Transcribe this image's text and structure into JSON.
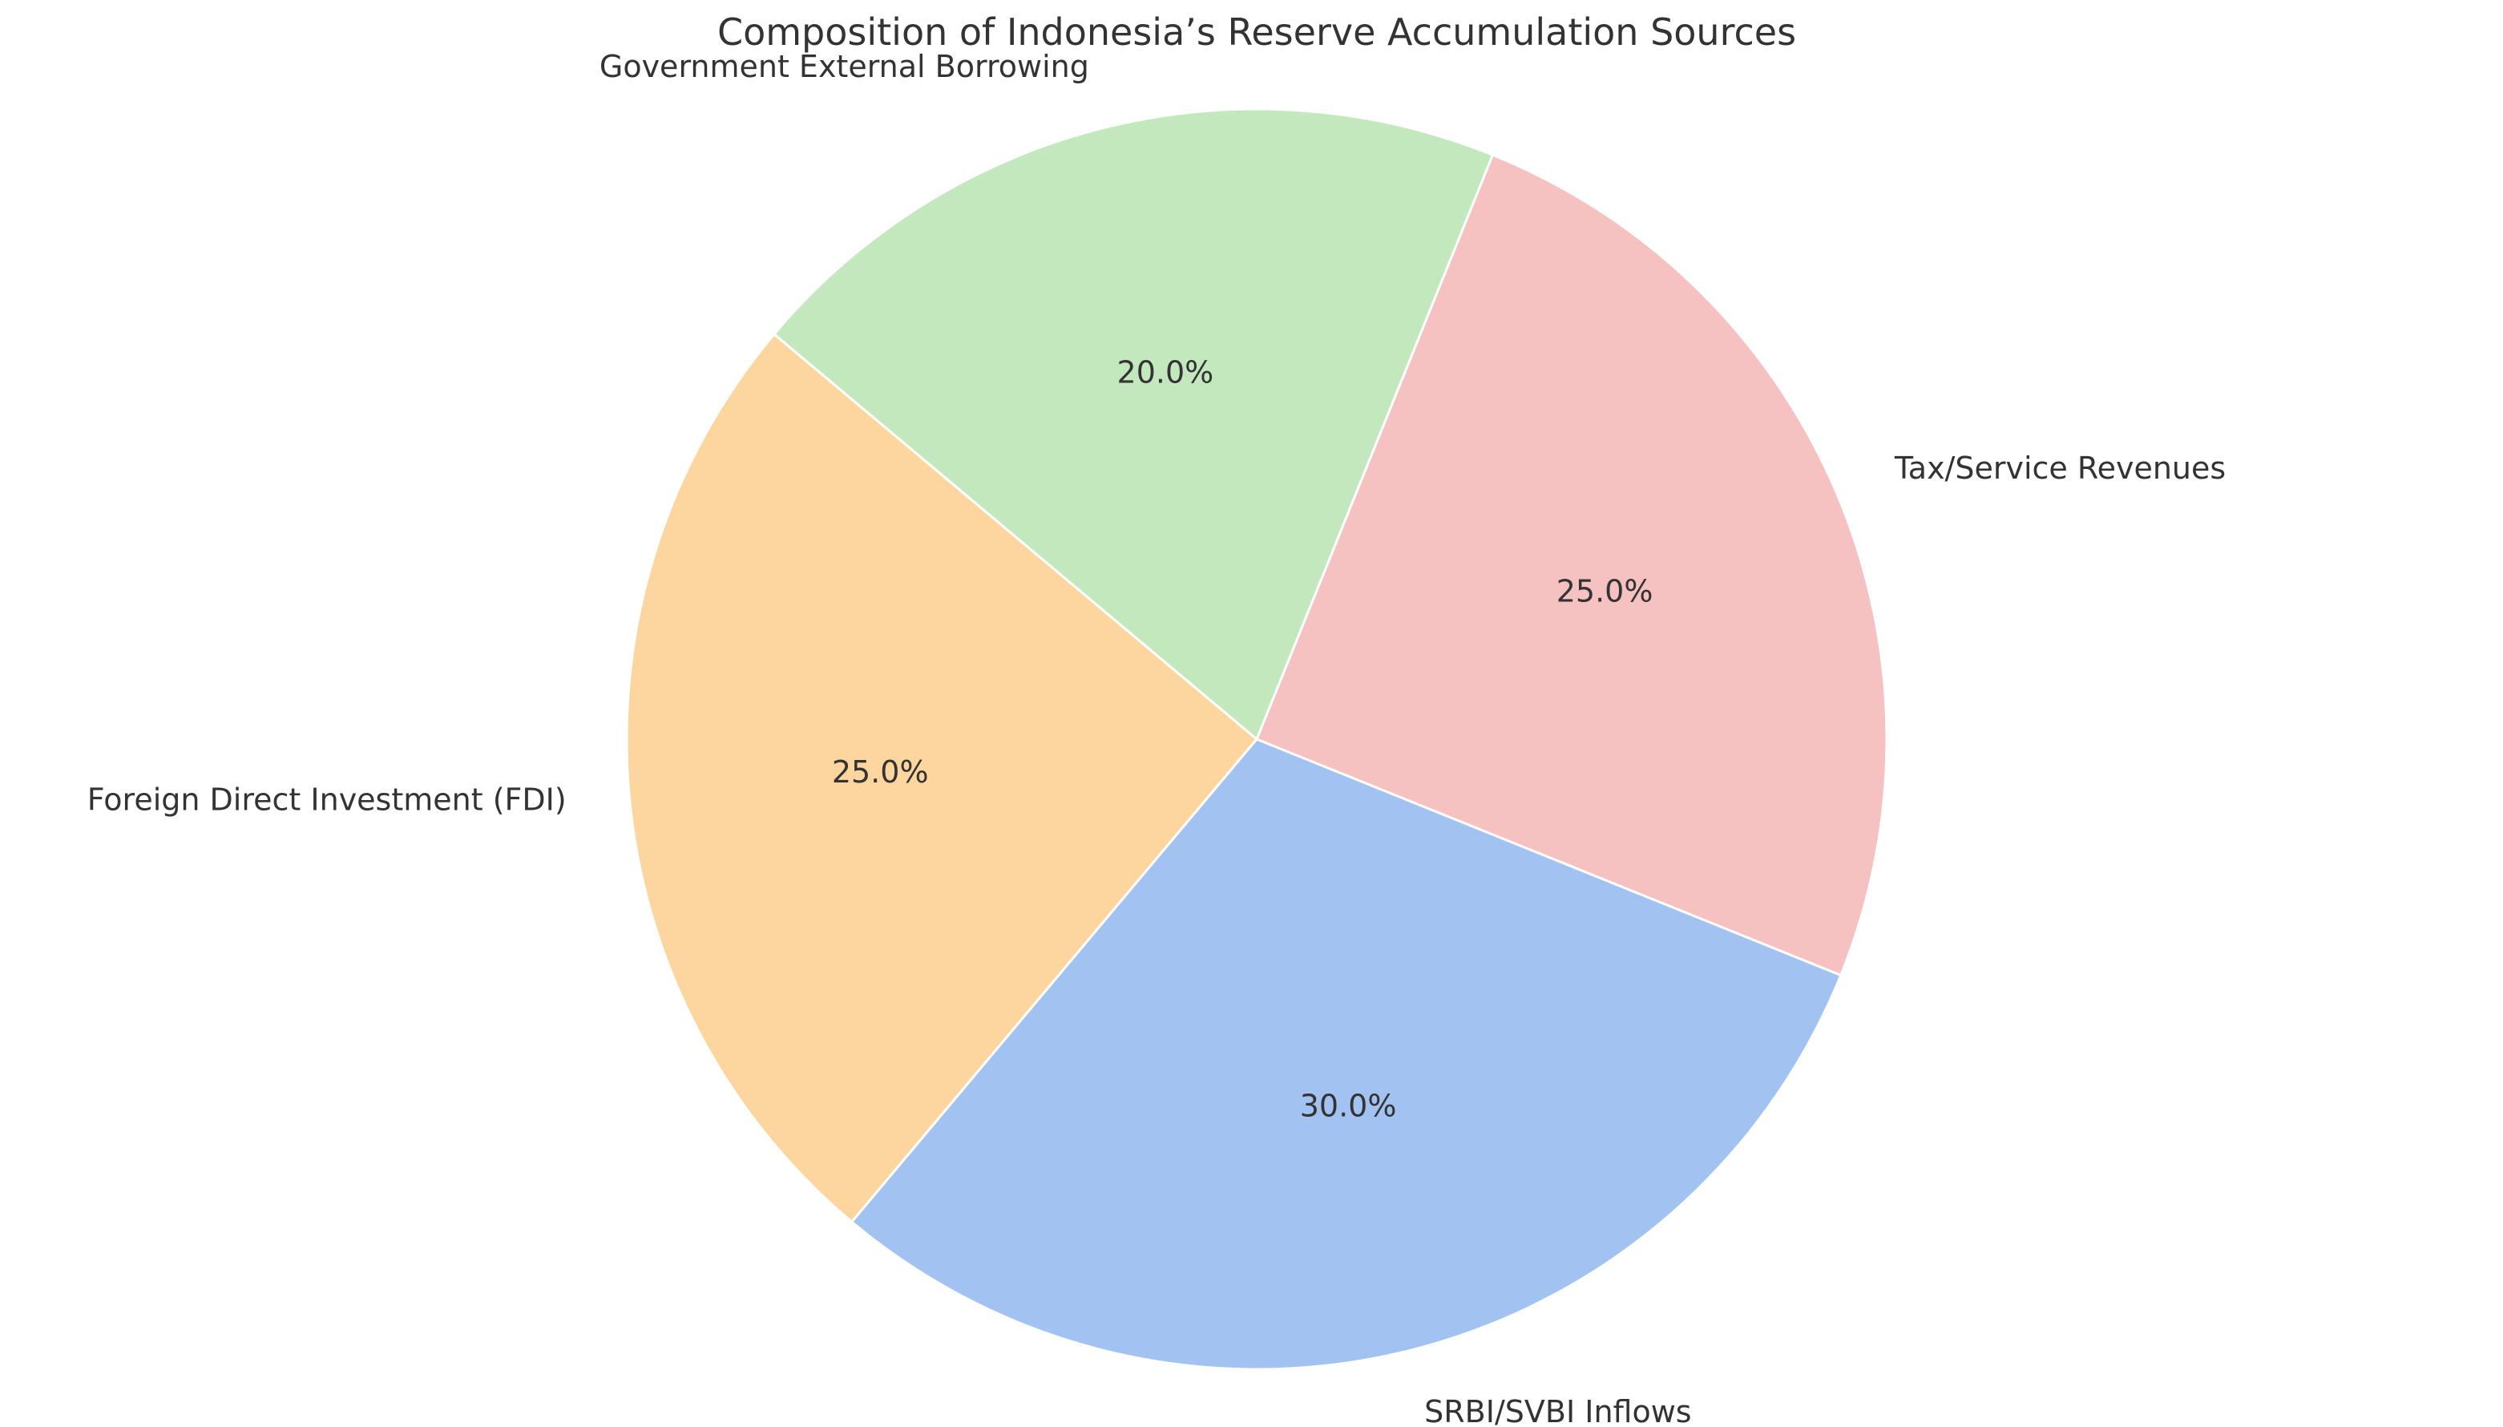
{
  "chart_data": {
    "type": "pie",
    "title": "Composition of Indonesia’s Reserve Accumulation Sources",
    "slices": [
      {
        "label": "Foreign Direct Investment (FDI)",
        "value": 25.0,
        "pct_label": "25.0%",
        "color": "#fdd59e"
      },
      {
        "label": "SRBI/SVBI Inflows",
        "value": 30.0,
        "pct_label": "30.0%",
        "color": "#a2c3f2"
      },
      {
        "label": "Tax/Service Revenues",
        "value": 25.0,
        "pct_label": "25.0%",
        "color": "#f5c1c1"
      },
      {
        "label": "Government External Borrowing",
        "value": 20.0,
        "pct_label": "20.0%",
        "color": "#c4e8bd"
      }
    ],
    "start_angle_deg": 140,
    "direction": "counterclockwise",
    "legend": "none"
  }
}
